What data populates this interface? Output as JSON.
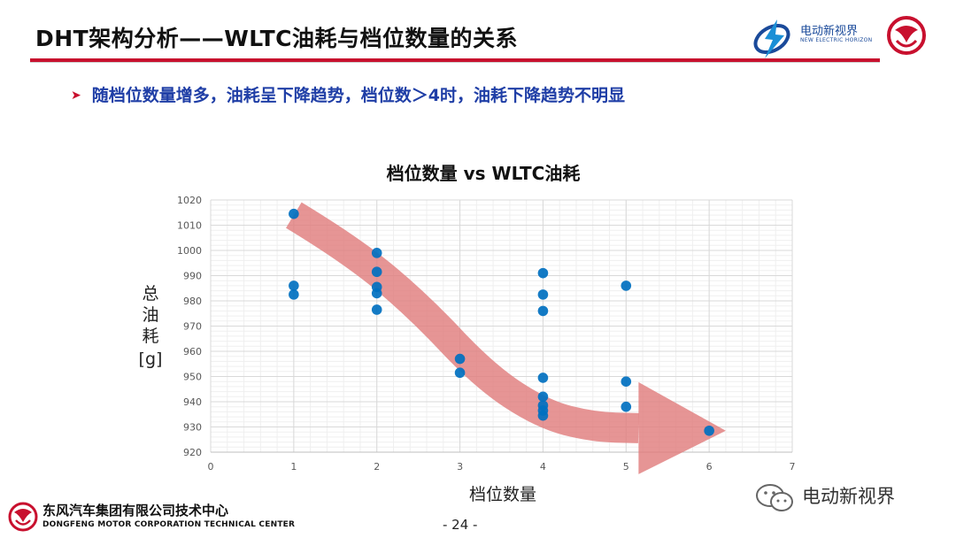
{
  "slide": {
    "title": "DHT架构分析——WLTC油耗与档位数量的关系",
    "bullet": "随档位数量增多，油耗呈下降趋势，档位数＞4时，油耗下降趋势不明显",
    "page_number": "- 24 -"
  },
  "brand": {
    "name": "电动新视界",
    "tagline": "NEW ELECTRIC HORIZON"
  },
  "footer": {
    "company_cn": "东风汽车集团有限公司技术中心",
    "company_en": "DONGFENG MOTOR CORPORATION TECHNICAL CENTER"
  },
  "watermark": "电动新视界",
  "icons": [
    "lightning-globe-logo",
    "dongfeng-logo",
    "wechat-icon",
    "bullet-arrow-icon"
  ],
  "colors": {
    "accent_red": "#c8102e",
    "bullet_blue": "#1f3ea6",
    "marker_blue": "#0070c0",
    "trend_arrow": "#e07a7a"
  },
  "chart_data": {
    "type": "scatter",
    "title": "档位数量 vs WLTC油耗",
    "xlabel": "档位数量",
    "ylabel": [
      "总",
      "油",
      "耗",
      "[g]"
    ],
    "xlim": [
      0,
      7
    ],
    "ylim": [
      920,
      1020
    ],
    "xticks": [
      0,
      1,
      2,
      3,
      4,
      5,
      6,
      7
    ],
    "yticks": [
      920,
      930,
      940,
      950,
      960,
      970,
      980,
      990,
      1000,
      1010,
      1020
    ],
    "grid": true,
    "annotation": "decreasing trend arrow",
    "points": [
      {
        "x": 1,
        "y": 1014.5
      },
      {
        "x": 1,
        "y": 986
      },
      {
        "x": 1,
        "y": 982.5
      },
      {
        "x": 2,
        "y": 999
      },
      {
        "x": 2,
        "y": 991.5
      },
      {
        "x": 2,
        "y": 985.5
      },
      {
        "x": 2,
        "y": 983
      },
      {
        "x": 2,
        "y": 976.5
      },
      {
        "x": 3,
        "y": 957
      },
      {
        "x": 3,
        "y": 951.5
      },
      {
        "x": 4,
        "y": 991
      },
      {
        "x": 4,
        "y": 982.5
      },
      {
        "x": 4,
        "y": 976
      },
      {
        "x": 4,
        "y": 949.5
      },
      {
        "x": 4,
        "y": 942
      },
      {
        "x": 4,
        "y": 938.5
      },
      {
        "x": 4,
        "y": 936.5
      },
      {
        "x": 4,
        "y": 934.5
      },
      {
        "x": 5,
        "y": 986
      },
      {
        "x": 5,
        "y": 948
      },
      {
        "x": 5,
        "y": 938
      },
      {
        "x": 6,
        "y": 928.5
      }
    ],
    "trend_path": [
      {
        "x": 1.0,
        "y": 1014
      },
      {
        "x": 1.7,
        "y": 1000
      },
      {
        "x": 2.5,
        "y": 978
      },
      {
        "x": 3.3,
        "y": 950
      },
      {
        "x": 4.0,
        "y": 935
      },
      {
        "x": 4.6,
        "y": 930
      },
      {
        "x": 5.15,
        "y": 929.5
      }
    ],
    "trend_head": {
      "x": 6.2,
      "y": 928.5
    }
  }
}
